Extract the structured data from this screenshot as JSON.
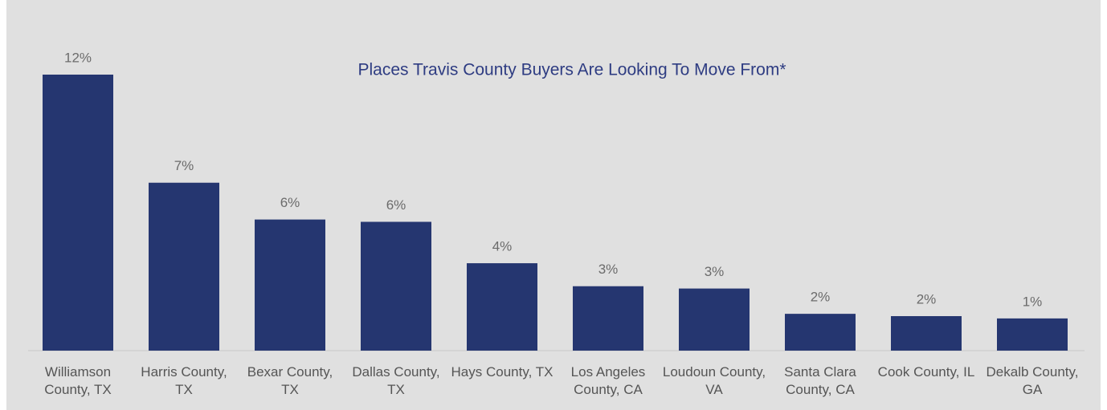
{
  "chart_data": {
    "type": "bar",
    "title": "Places Travis County Buyers Are Looking To Move From*",
    "categories": [
      "Williamson County, TX",
      "Harris County, TX",
      "Bexar County, TX",
      "Dallas County, TX",
      "Hays County, TX",
      "Los Angeles County, CA",
      "Loudoun County, VA",
      "Santa Clara County, CA",
      "Cook County, IL",
      "Dekalb County, GA"
    ],
    "values": [
      12.0,
      7.3,
      5.7,
      5.6,
      3.8,
      2.8,
      2.7,
      1.6,
      1.5,
      1.4
    ],
    "value_labels": [
      "12%",
      "7%",
      "6%",
      "6%",
      "4%",
      "3%",
      "3%",
      "2%",
      "2%",
      "1%"
    ],
    "color": "#253670",
    "ylim": [
      0,
      12
    ]
  }
}
